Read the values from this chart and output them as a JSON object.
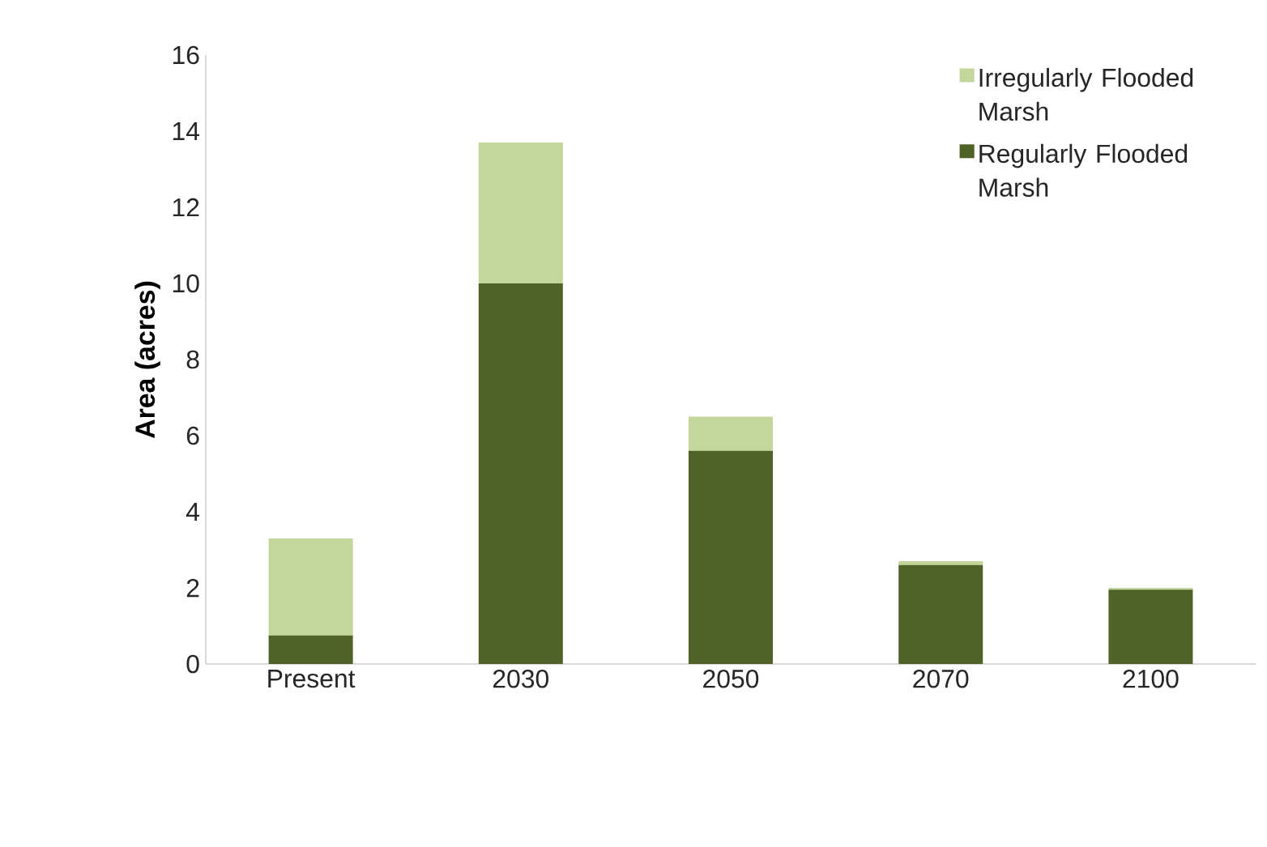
{
  "chart_data": {
    "type": "bar",
    "stacked": true,
    "ylabel": "Area (acres)",
    "categories": [
      "Present",
      "2030",
      "2050",
      "2070",
      "2100"
    ],
    "series": [
      {
        "name": "Regularly Flooded Marsh",
        "color": "#4f6228",
        "values": [
          0.75,
          10.0,
          5.6,
          2.6,
          1.95
        ]
      },
      {
        "name": "Irregularly Flooded Marsh",
        "color": "#c3d69b",
        "values": [
          2.55,
          3.7,
          0.9,
          0.1,
          0.05
        ]
      }
    ],
    "ylim": [
      0,
      16
    ],
    "yticks": [
      0,
      2,
      4,
      6,
      8,
      10,
      12,
      14,
      16
    ],
    "grid": false,
    "legend": "top right"
  }
}
